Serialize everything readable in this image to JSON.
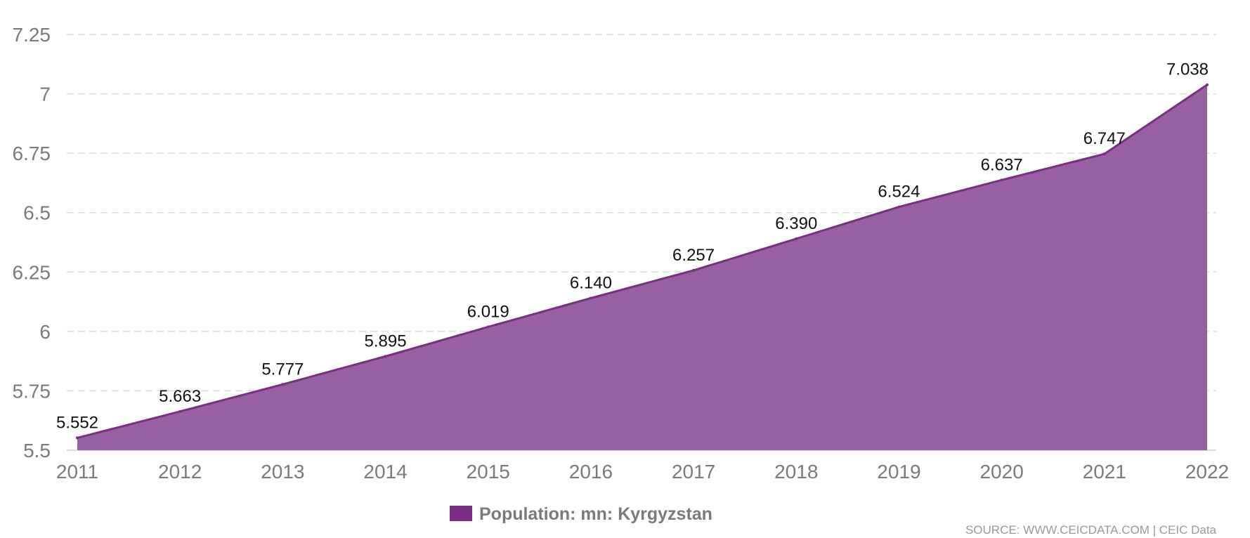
{
  "chart_data": {
    "type": "area",
    "title": "",
    "xlabel": "",
    "ylabel": "",
    "categories": [
      "2011",
      "2012",
      "2013",
      "2014",
      "2015",
      "2016",
      "2017",
      "2018",
      "2019",
      "2020",
      "2021",
      "2022"
    ],
    "series": [
      {
        "name": "Population: mn: Kyrgyzstan",
        "values": [
          5.552,
          5.663,
          5.777,
          5.895,
          6.019,
          6.14,
          6.257,
          6.39,
          6.524,
          6.637,
          6.747,
          7.038
        ],
        "labels": [
          "5.552",
          "5.663",
          "5.777",
          "5.895",
          "6.019",
          "6.140",
          "6.257",
          "6.390",
          "6.524",
          "6.637",
          "6.747",
          "7.038"
        ]
      }
    ],
    "ylim": [
      5.5,
      7.25
    ],
    "yticks": [
      5.5,
      5.75,
      6,
      6.25,
      6.5,
      6.75,
      7,
      7.25
    ],
    "ytick_labels": [
      "5.5",
      "5.75",
      "6",
      "6.25",
      "6.5",
      "6.75",
      "7",
      "7.25"
    ],
    "grid": true,
    "legend_position": "bottom-center",
    "colors": {
      "fill": "#9760a1",
      "line": "#7b2d85",
      "legend_swatch": "#7b2d85"
    }
  },
  "source": "SOURCE: WWW.CEICDATA.COM | CEIC Data"
}
